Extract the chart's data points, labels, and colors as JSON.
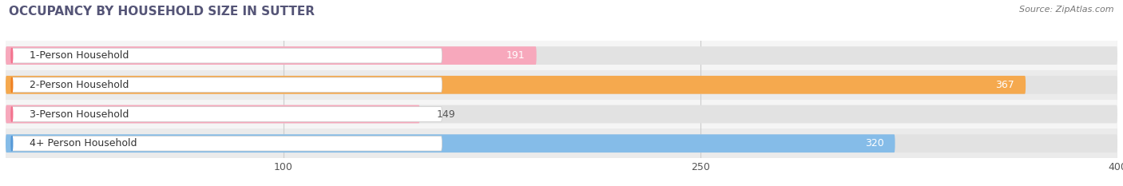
{
  "title": "OCCUPANCY BY HOUSEHOLD SIZE IN SUTTER",
  "source": "Source: ZipAtlas.com",
  "categories": [
    "1-Person Household",
    "2-Person Household",
    "3-Person Household",
    "4+ Person Household"
  ],
  "values": [
    191,
    367,
    149,
    320
  ],
  "bar_colors": [
    "#f7a8bc",
    "#f5a94e",
    "#f7a8bc",
    "#85bce8"
  ],
  "circle_colors": [
    "#f4728e",
    "#f08020",
    "#f4728e",
    "#5599d8"
  ],
  "xlim_data": [
    0,
    400
  ],
  "xticks": [
    100,
    250,
    400
  ],
  "background_color": "#ffffff",
  "bar_row_bg": "#f0f0f0",
  "bar_bg_color": "#e2e2e2",
  "label_bg_color": "#ffffff",
  "figsize": [
    14.06,
    2.33
  ],
  "dpi": 100,
  "value_outside_color": "#555555",
  "value_inside_color": "#ffffff"
}
